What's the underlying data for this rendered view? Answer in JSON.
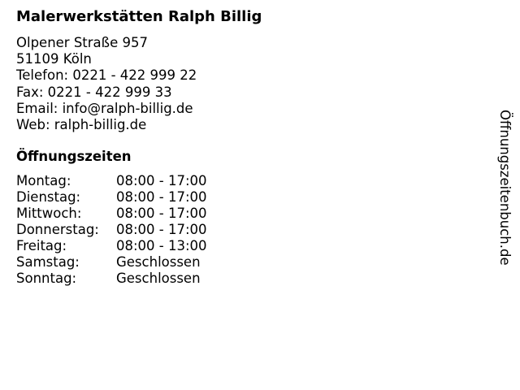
{
  "business": {
    "name": "Malerwerkstätten Ralph Billig",
    "street": "Olpener Straße 957",
    "city": "51109 Köln",
    "phone": "Telefon: 0221 - 422 999 22",
    "fax": "Fax: 0221 - 422 999 33",
    "email": "Email: info@ralph-billig.de",
    "web": "Web: ralph-billig.de"
  },
  "hours": {
    "heading": "Öffnungszeiten",
    "rows": [
      {
        "day": "Montag:",
        "time": "08:00 - 17:00"
      },
      {
        "day": "Dienstag:",
        "time": "08:00 - 17:00"
      },
      {
        "day": "Mittwoch:",
        "time": "08:00 - 17:00"
      },
      {
        "day": "Donnerstag:",
        "time": "08:00 - 17:00"
      },
      {
        "day": "Freitag:",
        "time": "08:00 - 13:00"
      },
      {
        "day": "Samstag:",
        "time": "Geschlossen"
      },
      {
        "day": "Sonntag:",
        "time": "Geschlossen"
      }
    ]
  },
  "brand": "Öffnungszeitenbuch.de"
}
